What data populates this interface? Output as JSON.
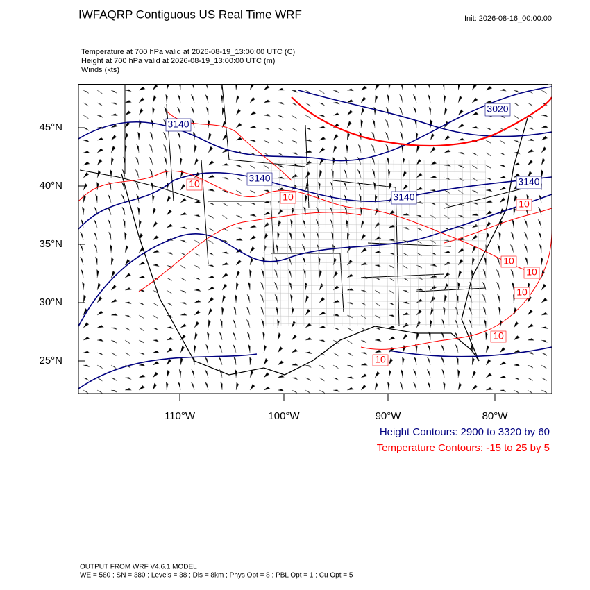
{
  "header": {
    "title": "IWFAQRP Contiguous US Real Time WRF",
    "init": "Init: 2026-08-16_00:00:00"
  },
  "fields": [
    "Temperature at 700 hPa valid at 2026-08-19_13:00:00 UTC   (C)",
    "Height at 700 hPa valid at 2026-08-19_13:00:00 UTC   (m)",
    "Winds   (kts)"
  ],
  "map": {
    "lat_labels": [
      "45°N",
      "40°N",
      "35°N",
      "30°N",
      "25°N"
    ],
    "lon_labels": [
      "110°W",
      "100°W",
      "90°W",
      "80°W"
    ],
    "height_contour_labels": [
      "3020",
      "3140",
      "3140",
      "3140",
      "3140"
    ],
    "temperature_contour_labels": [
      "10",
      "10",
      "10",
      "10",
      "10",
      "10",
      "10",
      "10"
    ]
  },
  "legend": [
    "Height Contours: 2900 to 3320 by 60",
    "Temperature Contours: -15 to 25 by 5"
  ],
  "footer": [
    "OUTPUT FROM WRF V4.6.1 MODEL",
    "WE = 580 ; SN = 380 ; Levels = 38 ; Dis = 8km ; Phys Opt = 8 ; PBL Opt = 1 ; Cu Opt = 5"
  ]
}
